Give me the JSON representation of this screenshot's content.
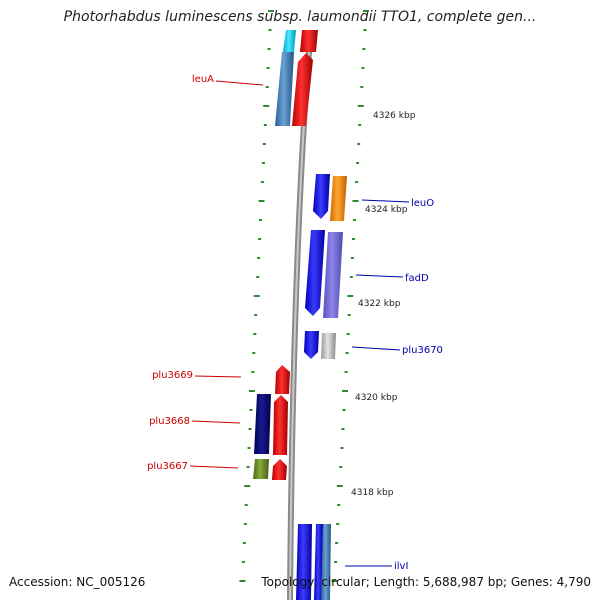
{
  "title": "Photorhabdus luminescens subsp. laumondii TTO1, complete gen...",
  "footer": {
    "accession": "Accession: NC_005126",
    "topology": "Topology: circular; Length: 5,688,987 bp; Genes: 4,790"
  },
  "colors": {
    "backbone": "#808080",
    "tick": "#2e8b2e",
    "left_label": "#cc0000",
    "right_label": "#0000aa"
  },
  "kbp_labels": [
    "4326 kbp",
    "4324 kbp",
    "4322 kbp",
    "4320 kbp",
    "4318 kbp"
  ],
  "genes_left": [
    {
      "name": "leuA"
    },
    {
      "name": "plu3669"
    },
    {
      "name": "plu3668"
    },
    {
      "name": "plu3667"
    }
  ],
  "genes_right": [
    {
      "name": "leuO"
    },
    {
      "name": "fadD"
    },
    {
      "name": "plu3670"
    },
    {
      "name": "ilvI"
    }
  ]
}
